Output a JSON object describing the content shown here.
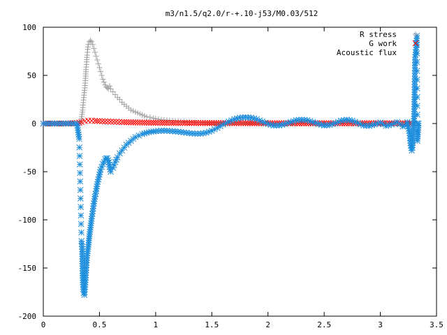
{
  "chart_data": {
    "type": "scatter",
    "title": "m3/n1.5/q2.0/r-+.10-j53/M0.03/512",
    "xlabel": "",
    "ylabel": "",
    "xlim": [
      0,
      3.5
    ],
    "ylim": [
      -200,
      100
    ],
    "x_ticks": [
      "0",
      "0.5",
      "1",
      "1.5",
      "2",
      "2.5",
      "3",
      "3.5"
    ],
    "y_ticks": [
      "100",
      "50",
      "0",
      "-50",
      "-100",
      "-150",
      "-200"
    ],
    "grid": false,
    "legend_position": "top-right",
    "series": [
      {
        "name": "R stress",
        "marker": "+",
        "color": "#a0a0a0",
        "points": [
          [
            0.33,
            0
          ],
          [
            0.34,
            5
          ],
          [
            0.35,
            14
          ],
          [
            0.36,
            27
          ],
          [
            0.37,
            37
          ],
          [
            0.375,
            47
          ],
          [
            0.38,
            56
          ],
          [
            0.385,
            64
          ],
          [
            0.39,
            71
          ],
          [
            0.395,
            77
          ],
          [
            0.4,
            82
          ],
          [
            0.41,
            85
          ],
          [
            0.42,
            86
          ],
          [
            0.43,
            85
          ],
          [
            0.44,
            82
          ],
          [
            0.45,
            78
          ],
          [
            0.46,
            74
          ],
          [
            0.47,
            70
          ],
          [
            0.48,
            66
          ],
          [
            0.49,
            62
          ],
          [
            0.5,
            58
          ],
          [
            0.51,
            54
          ],
          [
            0.52,
            50
          ],
          [
            0.53,
            46
          ],
          [
            0.54,
            43
          ],
          [
            0.55,
            40
          ],
          [
            0.56,
            38
          ],
          [
            0.57,
            37
          ],
          [
            0.58,
            36
          ],
          [
            0.59,
            39
          ],
          [
            0.6,
            36
          ],
          [
            0.62,
            33
          ],
          [
            0.64,
            30
          ],
          [
            0.66,
            27
          ],
          [
            0.68,
            25
          ],
          [
            0.7,
            22
          ],
          [
            0.72,
            20
          ],
          [
            0.74,
            18
          ],
          [
            0.76,
            16
          ],
          [
            0.78,
            14
          ],
          [
            0.8,
            13
          ],
          [
            0.82,
            12
          ],
          [
            0.84,
            11
          ],
          [
            0.86,
            10
          ],
          [
            0.88,
            9
          ],
          [
            0.9,
            8
          ],
          [
            0.92,
            7
          ],
          [
            0.95,
            6.5
          ],
          [
            0.98,
            5.5
          ],
          [
            1.0,
            5
          ],
          [
            1.05,
            4
          ],
          [
            1.1,
            3.5
          ],
          [
            1.15,
            3
          ],
          [
            1.2,
            2.5
          ],
          [
            1.25,
            2
          ],
          [
            1.3,
            1.5
          ],
          [
            1.35,
            1.2
          ],
          [
            1.4,
            1
          ],
          [
            1.5,
            0.8
          ],
          [
            1.6,
            0.5
          ],
          [
            1.8,
            0.3
          ],
          [
            2.0,
            0.2
          ],
          [
            2.5,
            0.1
          ],
          [
            3.0,
            0.1
          ],
          [
            3.3,
            0
          ]
        ]
      },
      {
        "name": "G work",
        "marker": "x",
        "color": "#ff0000",
        "points": [
          [
            0.0,
            0
          ],
          [
            0.1,
            0
          ],
          [
            0.2,
            0
          ],
          [
            0.3,
            0.5
          ],
          [
            0.34,
            1.5
          ],
          [
            0.37,
            2.5
          ],
          [
            0.4,
            3
          ],
          [
            0.43,
            3
          ],
          [
            0.46,
            2.8
          ],
          [
            0.5,
            2.5
          ],
          [
            0.55,
            2.2
          ],
          [
            0.6,
            2
          ],
          [
            0.65,
            1.8
          ],
          [
            0.7,
            1.5
          ],
          [
            0.8,
            1.2
          ],
          [
            0.9,
            1
          ],
          [
            1.0,
            0.8
          ],
          [
            1.2,
            0.6
          ],
          [
            1.4,
            0.5
          ],
          [
            1.6,
            0.4
          ],
          [
            1.8,
            0.4
          ],
          [
            2.0,
            0.3
          ],
          [
            2.2,
            0.3
          ],
          [
            2.4,
            0.3
          ],
          [
            2.6,
            0.3
          ],
          [
            2.8,
            0.3
          ],
          [
            3.0,
            0.3
          ],
          [
            3.2,
            0.3
          ],
          [
            3.3,
            0
          ]
        ]
      },
      {
        "name": "Acoustic flux",
        "marker": "*",
        "color": "#1a8cdc",
        "points": [
          [
            0.0,
            0
          ],
          [
            0.05,
            0
          ],
          [
            0.1,
            0
          ],
          [
            0.15,
            0
          ],
          [
            0.2,
            0
          ],
          [
            0.25,
            0
          ],
          [
            0.3,
            0
          ],
          [
            0.32,
            -16
          ],
          [
            0.34,
            -122
          ],
          [
            0.345,
            -128
          ],
          [
            0.35,
            -158
          ],
          [
            0.355,
            -172
          ],
          [
            0.36,
            -176
          ],
          [
            0.365,
            -178
          ],
          [
            0.37,
            -172
          ],
          [
            0.375,
            -165
          ],
          [
            0.38,
            -155
          ],
          [
            0.385,
            -147
          ],
          [
            0.39,
            -137
          ],
          [
            0.4,
            -128
          ],
          [
            0.41,
            -117
          ],
          [
            0.42,
            -108
          ],
          [
            0.43,
            -99
          ],
          [
            0.44,
            -91
          ],
          [
            0.45,
            -83
          ],
          [
            0.46,
            -76
          ],
          [
            0.47,
            -70
          ],
          [
            0.48,
            -63
          ],
          [
            0.49,
            -58
          ],
          [
            0.5,
            -53
          ],
          [
            0.51,
            -48
          ],
          [
            0.52,
            -45
          ],
          [
            0.53,
            -42
          ],
          [
            0.54,
            -40
          ],
          [
            0.55,
            -37
          ],
          [
            0.56,
            -36
          ],
          [
            0.57,
            -36
          ],
          [
            0.58,
            -38
          ],
          [
            0.59,
            -45
          ],
          [
            0.6,
            -50
          ],
          [
            0.62,
            -46
          ],
          [
            0.64,
            -40
          ],
          [
            0.66,
            -35
          ],
          [
            0.68,
            -31
          ],
          [
            0.7,
            -28
          ],
          [
            0.72,
            -25
          ],
          [
            0.74,
            -22
          ],
          [
            0.76,
            -20
          ],
          [
            0.78,
            -18
          ],
          [
            0.8,
            -16
          ],
          [
            0.82,
            -14
          ],
          [
            0.85,
            -12.5
          ],
          [
            0.88,
            -11
          ],
          [
            0.92,
            -9.5
          ],
          [
            0.96,
            -8.5
          ],
          [
            1.0,
            -8
          ],
          [
            1.05,
            -7.5
          ],
          [
            1.1,
            -7.5
          ],
          [
            1.15,
            -8
          ],
          [
            1.2,
            -8.5
          ],
          [
            1.25,
            -9.2
          ],
          [
            1.3,
            -10
          ],
          [
            1.35,
            -10.5
          ],
          [
            1.4,
            -10.5
          ],
          [
            1.45,
            -9.5
          ],
          [
            1.5,
            -7.5
          ],
          [
            1.55,
            -4.5
          ],
          [
            1.6,
            -1
          ],
          [
            1.65,
            2
          ],
          [
            1.7,
            4.5
          ],
          [
            1.75,
            6
          ],
          [
            1.8,
            6.5
          ],
          [
            1.85,
            6
          ],
          [
            1.9,
            4.5
          ],
          [
            1.95,
            2
          ],
          [
            2.0,
            -0.5
          ],
          [
            2.05,
            -2
          ],
          [
            2.1,
            -2
          ],
          [
            2.15,
            -0.5
          ],
          [
            2.2,
            1.5
          ],
          [
            2.25,
            3.5
          ],
          [
            2.3,
            4
          ],
          [
            2.35,
            3.5
          ],
          [
            2.4,
            1.5
          ],
          [
            2.45,
            -0.5
          ],
          [
            2.5,
            -2
          ],
          [
            2.55,
            -1.5
          ],
          [
            2.6,
            0.5
          ],
          [
            2.65,
            3
          ],
          [
            2.7,
            4
          ],
          [
            2.75,
            3
          ],
          [
            2.8,
            0.5
          ],
          [
            2.85,
            -2
          ],
          [
            2.9,
            -2.5
          ],
          [
            2.95,
            -1
          ],
          [
            3.0,
            1
          ],
          [
            3.05,
            -2.5
          ],
          [
            3.1,
            -1
          ],
          [
            3.15,
            1.5
          ],
          [
            3.2,
            -3
          ],
          [
            3.22,
            -2
          ],
          [
            3.24,
            1.5
          ],
          [
            3.26,
            -10
          ],
          [
            3.27,
            -23
          ],
          [
            3.28,
            -28
          ],
          [
            3.285,
            -25
          ],
          [
            3.29,
            -20
          ],
          [
            3.3,
            5
          ],
          [
            3.305,
            35
          ],
          [
            3.31,
            69
          ],
          [
            3.315,
            74
          ],
          [
            3.32,
            79
          ],
          [
            3.325,
            91
          ],
          [
            3.33,
            -18
          ],
          [
            3.34,
            0
          ]
        ]
      }
    ]
  }
}
